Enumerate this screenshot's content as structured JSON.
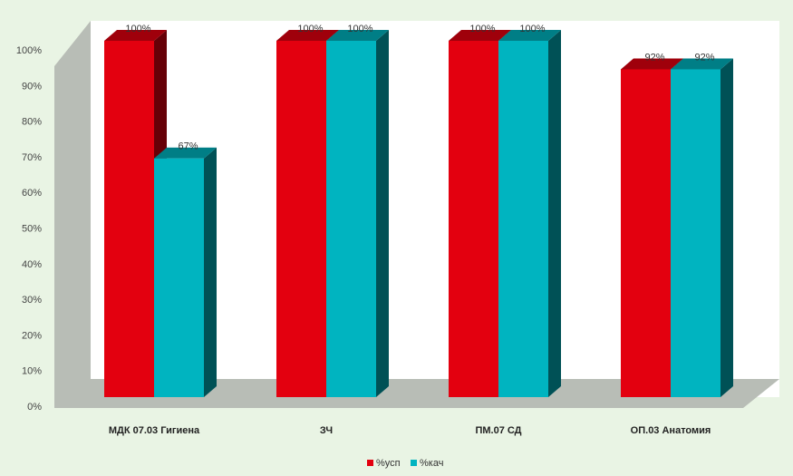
{
  "chart_data": {
    "type": "bar",
    "style": "3d-clustered-column",
    "categories": [
      "МДК 07.03 Гигиена",
      "ЗЧ",
      "ПМ.07 СД",
      "ОП.03 Анатомия"
    ],
    "series": [
      {
        "name": "%усп",
        "values": [
          100,
          100,
          100,
          92
        ],
        "color": "#e3000f",
        "labels": [
          "100%",
          "100%",
          "100%",
          "92%"
        ]
      },
      {
        "name": "%кач",
        "values": [
          67,
          100,
          100,
          92
        ],
        "color": "#00b4c0",
        "labels": [
          "67%",
          "100%",
          "100%",
          "92%"
        ]
      }
    ],
    "ylim": [
      0,
      100
    ],
    "yticks": [
      "0%",
      "10%",
      "20%",
      "30%",
      "40%",
      "50%",
      "60%",
      "70%",
      "80%",
      "90%",
      "100%"
    ],
    "legend": "bottom",
    "grid": false,
    "colors": {
      "background": "#e9f4e4",
      "walls": "#b8bdb6",
      "plot_area": "#ffffff"
    }
  }
}
